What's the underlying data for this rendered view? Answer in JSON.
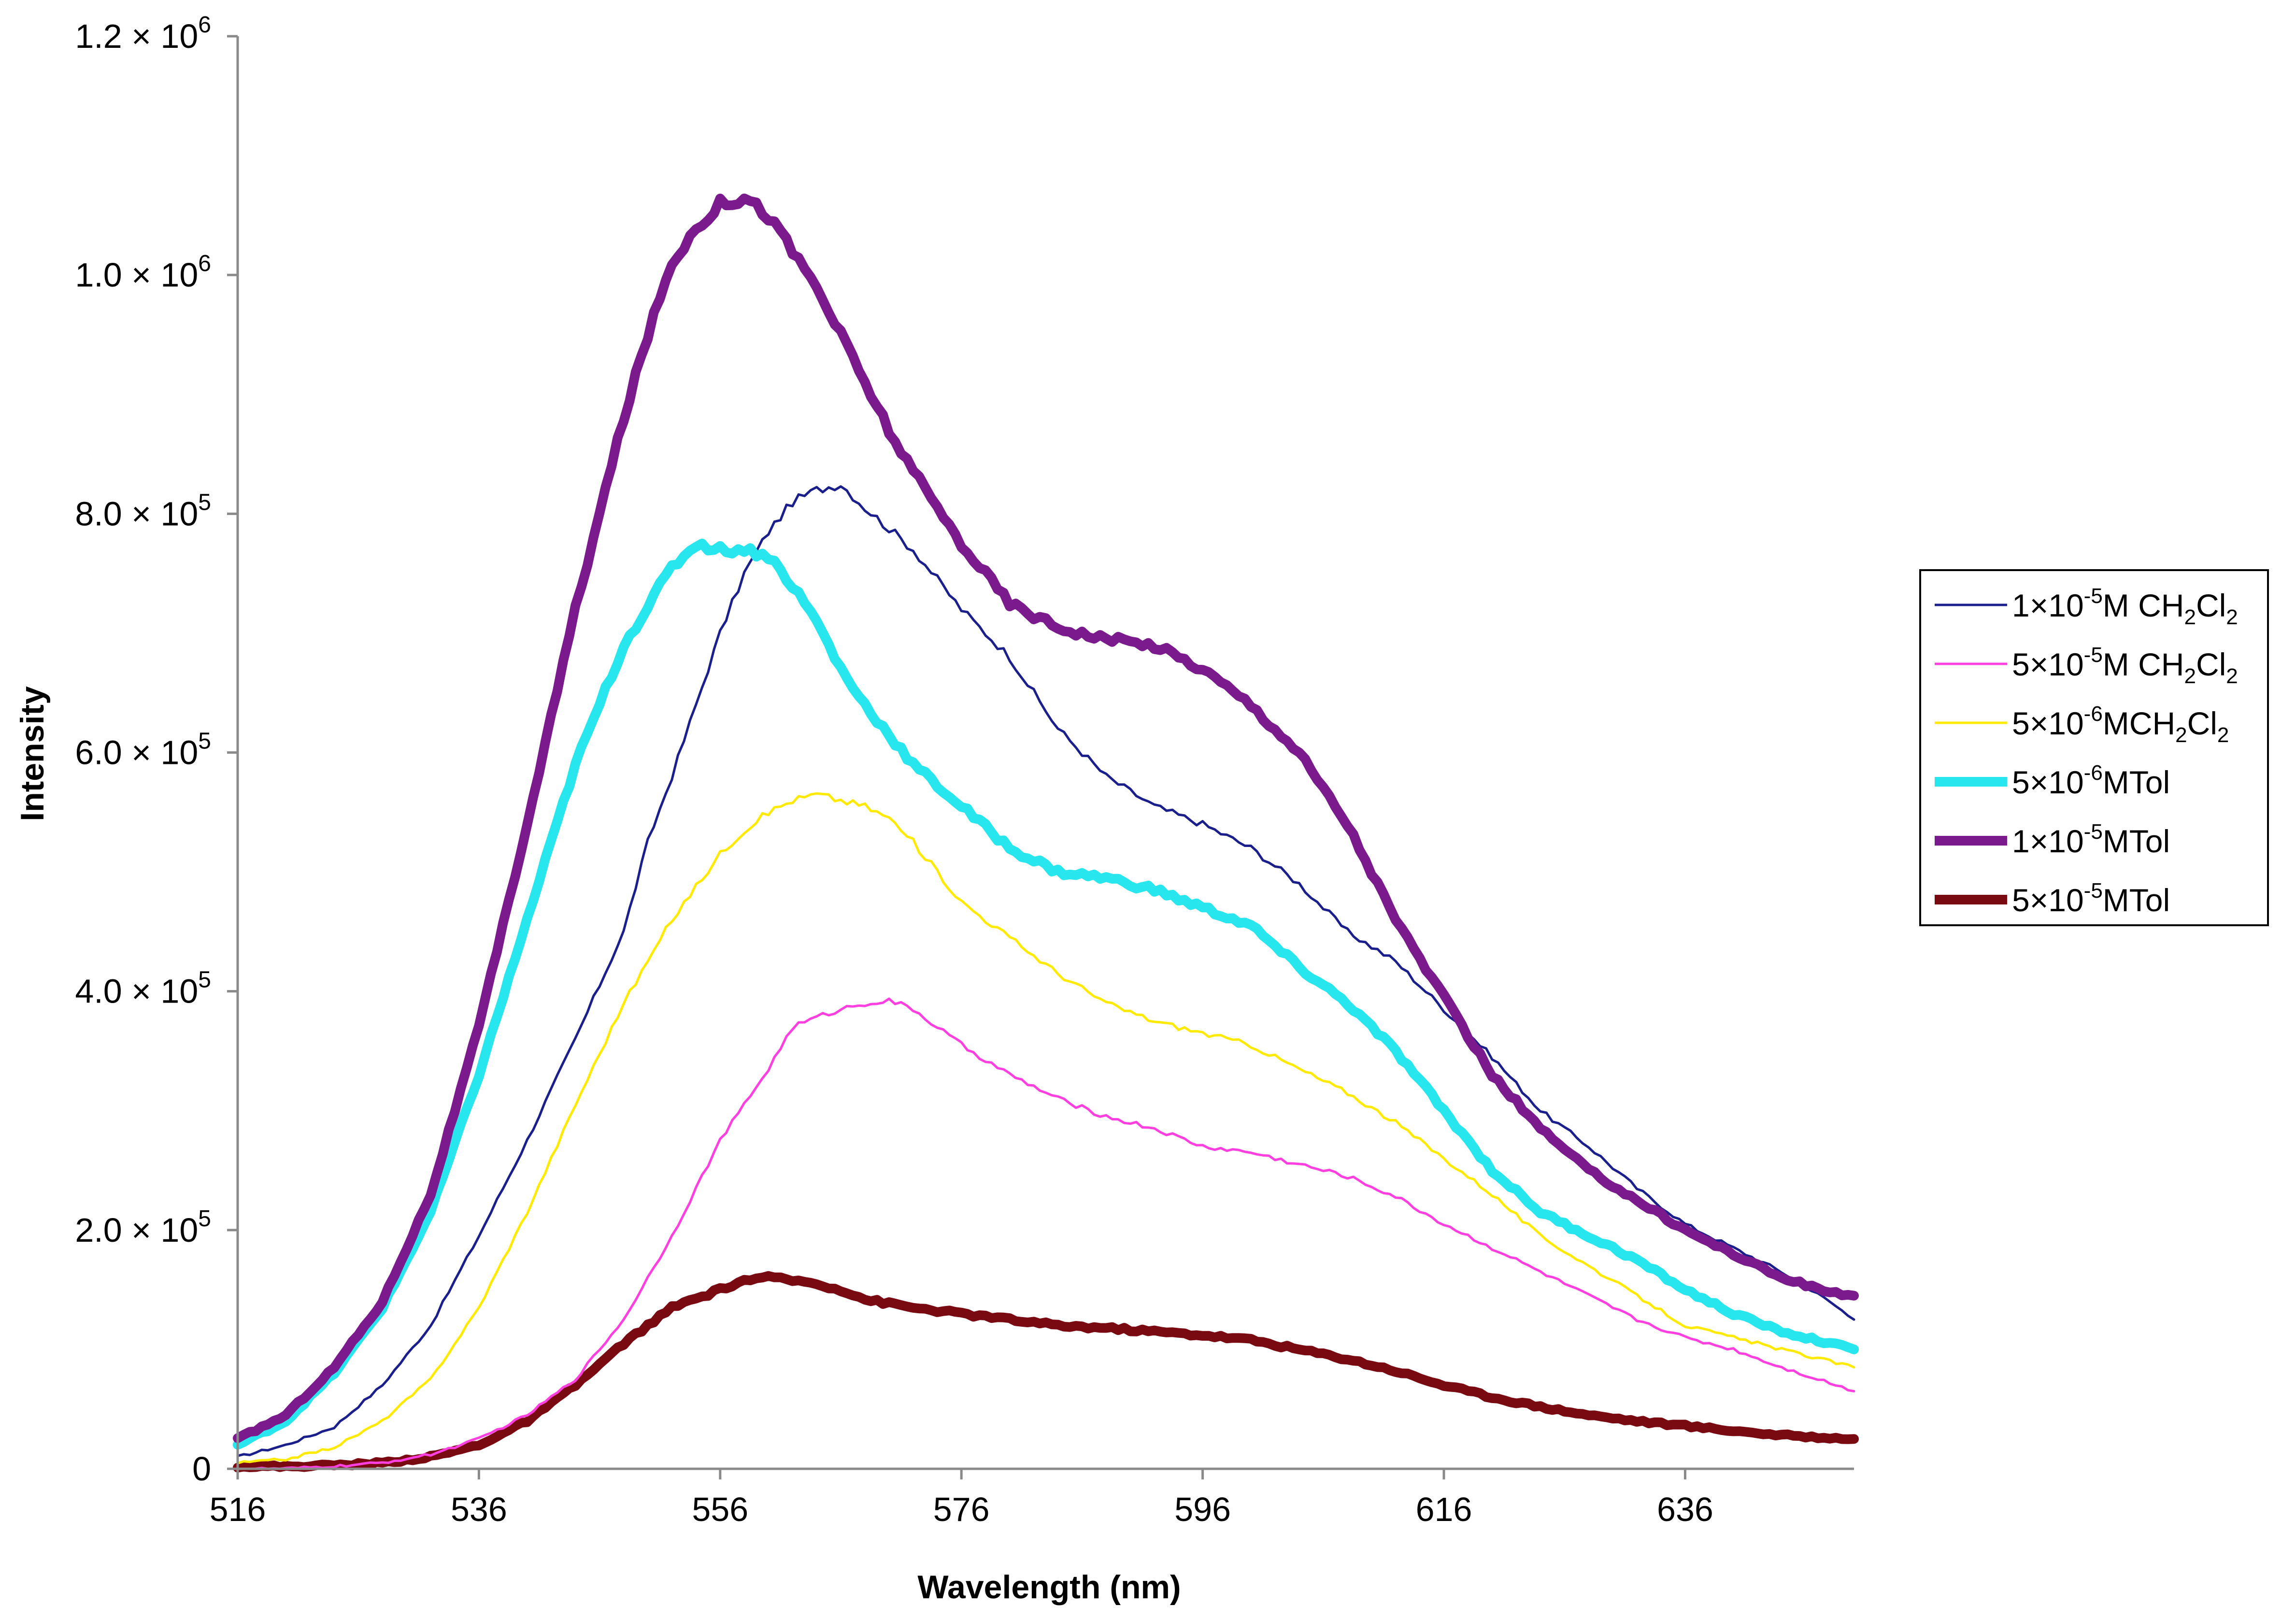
{
  "chart_data": {
    "type": "line",
    "title": "",
    "xlabel": "Wavelength (nm)",
    "ylabel": "Intensity",
    "xlim": [
      516,
      650
    ],
    "ylim": [
      0,
      1200000
    ],
    "grid": false,
    "legend_position": "right",
    "x_ticks": [
      516,
      536,
      556,
      576,
      596,
      616,
      636
    ],
    "x_tick_labels": [
      "516",
      "536",
      "556",
      "576",
      "596",
      "616",
      "636"
    ],
    "y_ticks": [
      0,
      200000,
      400000,
      600000,
      800000,
      1000000,
      1200000
    ],
    "y_tick_labels": [
      {
        "mantissa": "0",
        "exponent": ""
      },
      {
        "mantissa": "2.0 × 10",
        "exponent": "5"
      },
      {
        "mantissa": "4.0 × 10",
        "exponent": "5"
      },
      {
        "mantissa": "6.0 × 10",
        "exponent": "5"
      },
      {
        "mantissa": "8.0 × 10",
        "exponent": "5"
      },
      {
        "mantissa": "1.0 × 10",
        "exponent": "6"
      },
      {
        "mantissa": "1.2 × 10",
        "exponent": "6"
      }
    ],
    "series": [
      {
        "name": "1×10-5M CH2Cl2",
        "legend_parts": [
          {
            "t": "1×10"
          },
          {
            "t": "-5",
            "s": "sup"
          },
          {
            "t": "M CH"
          },
          {
            "t": "2",
            "s": "sub"
          },
          {
            "t": "Cl"
          },
          {
            "t": "2",
            "s": "sub"
          }
        ],
        "color": "#1a1f8c",
        "stroke_weight": "thin",
        "x": [
          516,
          520,
          524,
          528,
          532,
          536,
          540,
          544,
          548,
          550,
          552,
          554,
          556,
          558,
          560,
          562,
          564,
          566,
          568,
          572,
          576,
          580,
          584,
          588,
          592,
          596,
          600,
          604,
          608,
          612,
          616,
          620,
          624,
          628,
          632,
          636,
          640,
          644,
          648,
          650
        ],
        "y": [
          10000,
          20000,
          35000,
          70000,
          120000,
          195000,
          275000,
          360000,
          450000,
          525000,
          580000,
          640000,
          700000,
          750000,
          785000,
          810000,
          820000,
          825000,
          805000,
          770000,
          720000,
          680000,
          620000,
          580000,
          555000,
          540000,
          520000,
          490000,
          450000,
          425000,
          385000,
          345000,
          300000,
          270000,
          235000,
          205000,
          185000,
          165000,
          140000,
          125000
        ]
      },
      {
        "name": "5×10-5M CH2Cl2",
        "legend_parts": [
          {
            "t": "5×10"
          },
          {
            "t": "-5",
            "s": "sup"
          },
          {
            "t": "M CH"
          },
          {
            "t": "2",
            "s": "sub"
          },
          {
            "t": "Cl"
          },
          {
            "t": "2",
            "s": "sub"
          }
        ],
        "color": "#ff3fe0",
        "stroke_weight": "thin",
        "x": [
          516,
          520,
          524,
          528,
          532,
          536,
          540,
          544,
          548,
          552,
          556,
          560,
          562,
          564,
          566,
          568,
          570,
          572,
          576,
          580,
          584,
          588,
          592,
          596,
          600,
          604,
          608,
          612,
          616,
          620,
          624,
          628,
          632,
          636,
          640,
          644,
          648,
          650
        ],
        "y": [
          0,
          0,
          2000,
          5000,
          12000,
          25000,
          45000,
          75000,
          125000,
          195000,
          275000,
          335000,
          370000,
          378000,
          385000,
          390000,
          392000,
          385000,
          355000,
          330000,
          310000,
          295000,
          285000,
          270000,
          265000,
          255000,
          245000,
          228000,
          205000,
          185000,
          165000,
          145000,
          125000,
          110000,
          100000,
          85000,
          72000,
          65000
        ]
      },
      {
        "name": "5×10-6MCH2Cl2",
        "legend_parts": [
          {
            "t": "5×10"
          },
          {
            "t": "-6",
            "s": "sup"
          },
          {
            "t": "MCH"
          },
          {
            "t": "2",
            "s": "sub"
          },
          {
            "t": "Cl"
          },
          {
            "t": "2",
            "s": "sub"
          }
        ],
        "color": "#ffea00",
        "stroke_weight": "thin",
        "x": [
          516,
          520,
          524,
          528,
          532,
          536,
          540,
          544,
          548,
          552,
          556,
          558,
          560,
          562,
          564,
          566,
          568,
          570,
          572,
          576,
          580,
          584,
          588,
          592,
          596,
          600,
          604,
          608,
          612,
          616,
          620,
          624,
          628,
          632,
          636,
          640,
          644,
          648,
          650
        ],
        "y": [
          5000,
          8000,
          18000,
          40000,
          75000,
          135000,
          215000,
          305000,
          390000,
          460000,
          515000,
          535000,
          550000,
          560000,
          565000,
          560000,
          555000,
          545000,
          525000,
          475000,
          445000,
          415000,
          390000,
          375000,
          365000,
          355000,
          335000,
          315000,
          290000,
          260000,
          230000,
          195000,
          170000,
          145000,
          120000,
          110000,
          100000,
          90000,
          85000
        ]
      },
      {
        "name": "5×10-6MTol",
        "legend_parts": [
          {
            "t": "5×10"
          },
          {
            "t": "-6",
            "s": "sup"
          },
          {
            "t": "MTol"
          }
        ],
        "color": "#27e6ee",
        "stroke_weight": "thick",
        "x": [
          516,
          520,
          524,
          528,
          532,
          536,
          540,
          544,
          548,
          552,
          554,
          556,
          558,
          560,
          562,
          564,
          566,
          568,
          572,
          576,
          580,
          584,
          588,
          592,
          596,
          600,
          604,
          608,
          612,
          616,
          620,
          624,
          628,
          632,
          636,
          640,
          644,
          648,
          650
        ],
        "y": [
          20000,
          40000,
          80000,
          135000,
          215000,
          330000,
          460000,
          590000,
          690000,
          755000,
          775000,
          770000,
          770000,
          765000,
          740000,
          710000,
          670000,
          640000,
          590000,
          555000,
          520000,
          500000,
          495000,
          485000,
          470000,
          455000,
          420000,
          390000,
          350000,
          300000,
          250000,
          215000,
          195000,
          175000,
          150000,
          130000,
          115000,
          105000,
          100000
        ]
      },
      {
        "name": "1×10-5MTol",
        "legend_parts": [
          {
            "t": "1×10"
          },
          {
            "t": "-5",
            "s": "sup"
          },
          {
            "t": "MTol"
          }
        ],
        "color": "#7a1a8c",
        "stroke_weight": "thick",
        "x": [
          516,
          520,
          524,
          528,
          532,
          536,
          540,
          544,
          548,
          550,
          552,
          554,
          556,
          558,
          560,
          562,
          564,
          566,
          568,
          570,
          572,
          576,
          580,
          584,
          588,
          592,
          596,
          600,
          604,
          608,
          612,
          616,
          620,
          624,
          628,
          632,
          636,
          640,
          644,
          648,
          650
        ],
        "y": [
          25000,
          45000,
          85000,
          140000,
          230000,
          370000,
          540000,
          720000,
          880000,
          950000,
          1010000,
          1040000,
          1060000,
          1065000,
          1050000,
          1020000,
          990000,
          950000,
          910000,
          870000,
          835000,
          775000,
          725000,
          705000,
          695000,
          690000,
          670000,
          640000,
          600000,
          540000,
          460000,
          395000,
          330000,
          285000,
          250000,
          225000,
          200000,
          180000,
          160000,
          148000,
          145000
        ]
      },
      {
        "name": "5×10-5MTol",
        "legend_parts": [
          {
            "t": "5×10"
          },
          {
            "t": "-5",
            "s": "sup"
          },
          {
            "t": "MTol"
          }
        ],
        "color": "#7a0a12",
        "stroke_weight": "thick",
        "x": [
          516,
          520,
          524,
          528,
          532,
          536,
          540,
          544,
          548,
          552,
          556,
          558,
          560,
          562,
          564,
          566,
          568,
          572,
          576,
          580,
          584,
          588,
          592,
          596,
          600,
          604,
          608,
          612,
          616,
          620,
          624,
          628,
          632,
          636,
          640,
          644,
          648,
          650
        ],
        "y": [
          2000,
          2000,
          3000,
          5000,
          10000,
          20000,
          40000,
          70000,
          105000,
          135000,
          150000,
          158000,
          160000,
          158000,
          155000,
          150000,
          142000,
          135000,
          130000,
          125000,
          120000,
          118000,
          115000,
          112000,
          108000,
          100000,
          92000,
          82000,
          70000,
          60000,
          52000,
          45000,
          40000,
          36000,
          32000,
          28000,
          26000,
          25000
        ]
      }
    ]
  }
}
